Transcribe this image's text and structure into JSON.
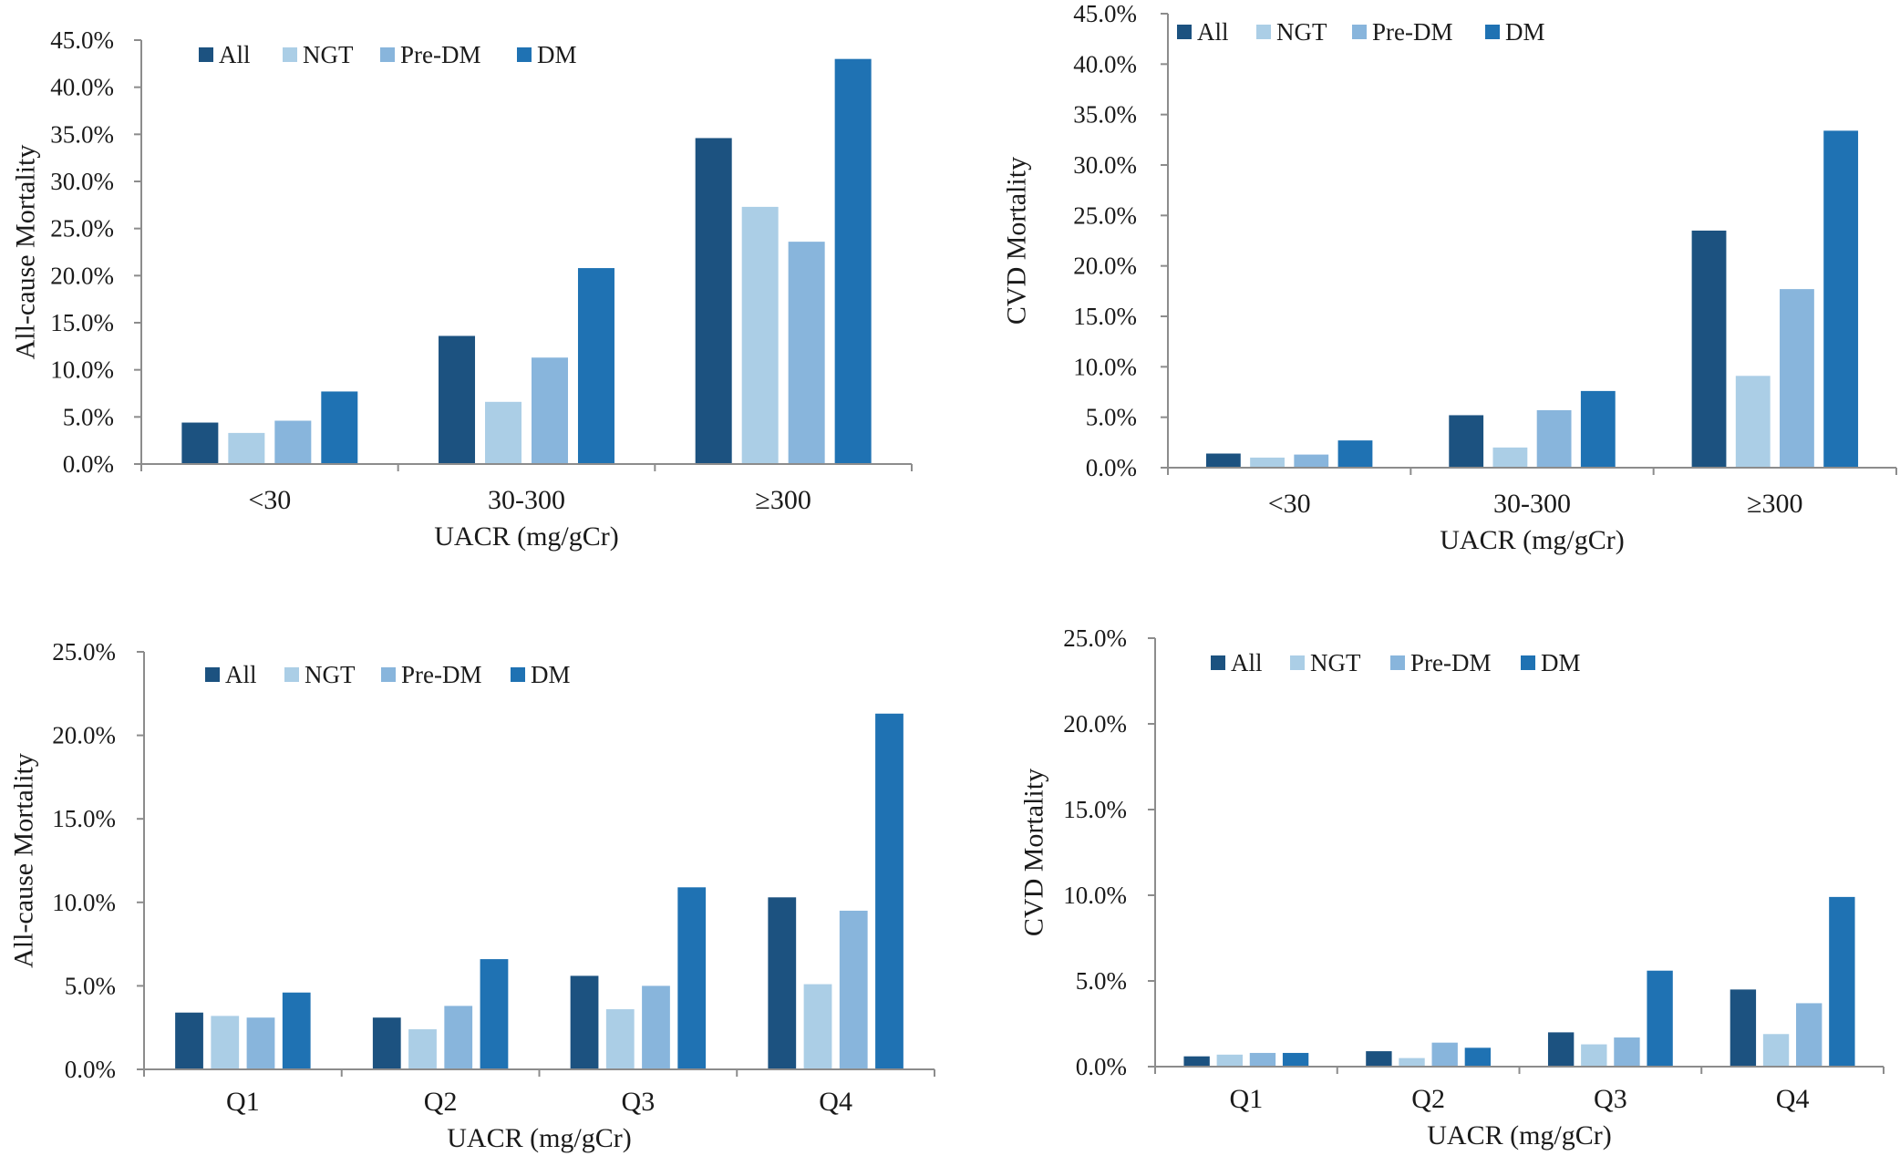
{
  "colors": {
    "All": "#1c5280",
    "NGT": "#abcee6",
    "Pre-DM": "#88b5dc",
    "DM": "#1f72b3",
    "axis": "#8c8c8c"
  },
  "chart_data": [
    {
      "type": "bar",
      "title": "",
      "xlabel": "UACR (mg/gCr)",
      "ylabel": "All-cause Mortality",
      "categories": [
        "<30",
        "30-300",
        "≥300"
      ],
      "ylim": [
        0,
        45
      ],
      "yticks": [
        "0.0%",
        "5.0%",
        "10.0%",
        "15.0%",
        "20.0%",
        "25.0%",
        "30.0%",
        "35.0%",
        "40.0%",
        "45.0%"
      ],
      "ytick_values": [
        0,
        5,
        10,
        15,
        20,
        25,
        30,
        35,
        40,
        45
      ],
      "legend": "top-left",
      "grid": false,
      "series": [
        {
          "name": "All",
          "values": [
            4.4,
            13.6,
            34.6
          ]
        },
        {
          "name": "NGT",
          "values": [
            3.3,
            6.6,
            27.3
          ]
        },
        {
          "name": "Pre-DM",
          "values": [
            4.6,
            11.3,
            23.6
          ]
        },
        {
          "name": "DM",
          "values": [
            7.7,
            20.8,
            43.0
          ]
        }
      ]
    },
    {
      "type": "bar",
      "title": "",
      "xlabel": "UACR (mg/gCr)",
      "ylabel": "CVD Mortality",
      "categories": [
        "<30",
        "30-300",
        "≥300"
      ],
      "ylim": [
        0,
        45
      ],
      "yticks": [
        "0.0%",
        "5.0%",
        "10.0%",
        "15.0%",
        "20.0%",
        "25.0%",
        "30.0%",
        "35.0%",
        "40.0%",
        "45.0%"
      ],
      "ytick_values": [
        0,
        5,
        10,
        15,
        20,
        25,
        30,
        35,
        40,
        45
      ],
      "legend": "top-left",
      "grid": false,
      "series": [
        {
          "name": "All",
          "values": [
            1.4,
            5.2,
            23.5
          ]
        },
        {
          "name": "NGT",
          "values": [
            1.0,
            2.0,
            9.1
          ]
        },
        {
          "name": "Pre-DM",
          "values": [
            1.3,
            5.7,
            17.7
          ]
        },
        {
          "name": "DM",
          "values": [
            2.7,
            7.6,
            33.4
          ]
        }
      ]
    },
    {
      "type": "bar",
      "title": "",
      "xlabel": "UACR (mg/gCr)",
      "ylabel": "All-cause Mortality",
      "categories": [
        "Q1",
        "Q2",
        "Q3",
        "Q4"
      ],
      "ylim": [
        0,
        25
      ],
      "yticks": [
        "0.0%",
        "5.0%",
        "10.0%",
        "15.0%",
        "20.0%",
        "25.0%"
      ],
      "ytick_values": [
        0,
        5,
        10,
        15,
        20,
        25
      ],
      "legend": "top-left",
      "grid": false,
      "series": [
        {
          "name": "All",
          "values": [
            3.4,
            3.1,
            5.6,
            10.3
          ]
        },
        {
          "name": "NGT",
          "values": [
            3.2,
            2.4,
            3.6,
            5.1
          ]
        },
        {
          "name": "Pre-DM",
          "values": [
            3.1,
            3.8,
            5.0,
            9.5
          ]
        },
        {
          "name": "DM",
          "values": [
            4.6,
            6.6,
            10.9,
            21.3
          ]
        }
      ]
    },
    {
      "type": "bar",
      "title": "",
      "xlabel": "UACR (mg/gCr)",
      "ylabel": "CVD Mortality",
      "categories": [
        "Q1",
        "Q2",
        "Q3",
        "Q4"
      ],
      "ylim": [
        0,
        25
      ],
      "yticks": [
        "0.0%",
        "5.0%",
        "10.0%",
        "15.0%",
        "20.0%",
        "25.0%"
      ],
      "ytick_values": [
        0,
        5,
        10,
        15,
        20,
        25
      ],
      "legend": "top-left",
      "grid": false,
      "series": [
        {
          "name": "All",
          "values": [
            0.6,
            0.9,
            2.0,
            4.5
          ]
        },
        {
          "name": "NGT",
          "values": [
            0.7,
            0.5,
            1.3,
            1.9
          ]
        },
        {
          "name": "Pre-DM",
          "values": [
            0.8,
            1.4,
            1.7,
            3.7
          ]
        },
        {
          "name": "DM",
          "values": [
            0.8,
            1.1,
            5.6,
            9.9
          ]
        }
      ]
    }
  ]
}
